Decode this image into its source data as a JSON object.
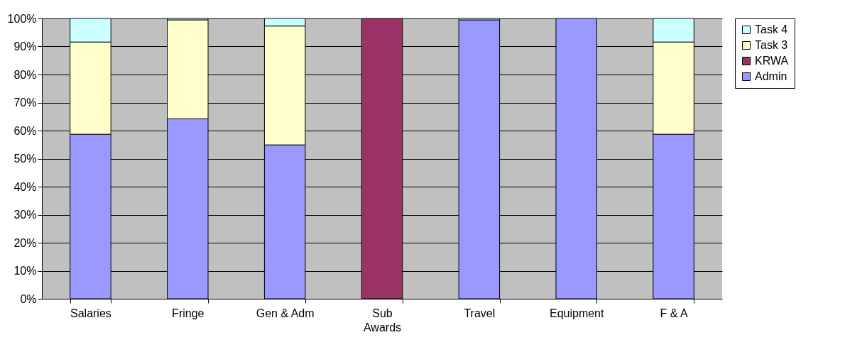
{
  "chart_data": {
    "type": "bar",
    "stacked": true,
    "categories": [
      "Salaries",
      "Fringe",
      "Gen & Adm",
      "Sub Awards",
      "Travel",
      "Equipment",
      "F & A"
    ],
    "series": [
      {
        "name": "Admin",
        "color": "#9999ff",
        "values": [
          58.7,
          64.2,
          54.9,
          null,
          99.5,
          100,
          58.7
        ]
      },
      {
        "name": "KRWA",
        "color": "#993366",
        "values": [
          null,
          null,
          null,
          100,
          null,
          null,
          null
        ]
      },
      {
        "name": "Task 3",
        "color": "#ffffcc",
        "values": [
          32.9,
          35.3,
          42.4,
          null,
          null,
          null,
          32.9
        ]
      },
      {
        "name": "Task 4",
        "color": "#ccffff",
        "values": [
          8.4,
          0.5,
          2.7,
          null,
          0.5,
          null,
          8.4
        ]
      }
    ],
    "ylim": [
      0,
      100
    ],
    "yticks": [
      {
        "value": 0,
        "label": "0%"
      },
      {
        "value": 10,
        "label": "10%"
      },
      {
        "value": 20,
        "label": "20%"
      },
      {
        "value": 30,
        "label": "30%"
      },
      {
        "value": 40,
        "label": "40%"
      },
      {
        "value": 50,
        "label": "50%"
      },
      {
        "value": 60,
        "label": "60%"
      },
      {
        "value": 70,
        "label": "70%"
      },
      {
        "value": 80,
        "label": "80%"
      },
      {
        "value": 90,
        "label": "90%"
      },
      {
        "value": 100,
        "label": "100%"
      }
    ],
    "grid": "y",
    "legend": "right"
  }
}
